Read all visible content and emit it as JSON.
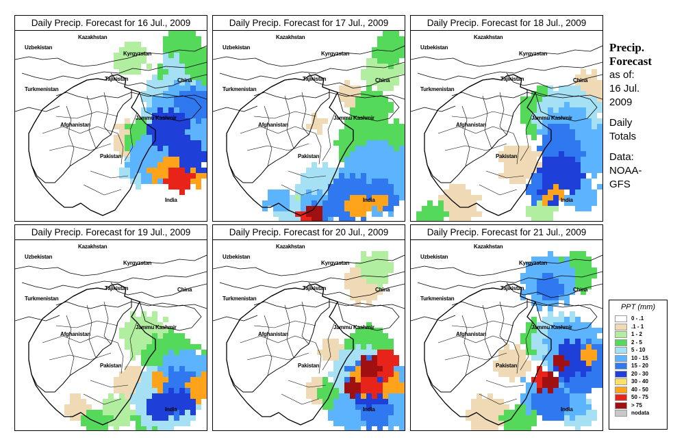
{
  "panels": [
    {
      "title": "Daily Precip. Forecast for  16 Jul., 2009"
    },
    {
      "title": "Daily Precip. Forecast for  17 Jul., 2009"
    },
    {
      "title": "Daily Precip. Forecast for  18 Jul., 2009"
    },
    {
      "title": "Daily Precip. Forecast for  19 Jul., 2009"
    },
    {
      "title": "Daily Precip. Forecast for  20 Jul., 2009"
    },
    {
      "title": "Daily Precip. Forecast for  21 Jul., 2009"
    }
  ],
  "country_labels": [
    "Kazakhstan",
    "Uzbekistan",
    "Kyrgyzstan",
    "Tajikistan",
    "Turkmenistan",
    "China",
    "Afghanistan",
    "Jammu Kashmir",
    "Pakistan",
    "India"
  ],
  "sidebar": {
    "title_line1": "Precip.",
    "title_line2": "Forecast",
    "asof_line1": "as of:",
    "asof_line2": "16 Jul.",
    "asof_line3": "2009",
    "totals_line1": "Daily",
    "totals_line2": "Totals",
    "source_line1": "Data:",
    "source_line2": "NOAA-",
    "source_line3": "GFS"
  },
  "legend": {
    "title": "PPT (mm)",
    "items": [
      {
        "label": "0 - .1",
        "color": "#ffffff"
      },
      {
        "label": ".1 - 1",
        "color": "#f0d9b5"
      },
      {
        "label": "1 - 2",
        "color": "#b2eea0"
      },
      {
        "label": "2 - 5",
        "color": "#55d95a"
      },
      {
        "label": "5 - 10",
        "color": "#a6e0f5"
      },
      {
        "label": "10 - 15",
        "color": "#5cb4ff"
      },
      {
        "label": "15 - 20",
        "color": "#2f78f0"
      },
      {
        "label": "20 - 30",
        "color": "#1e3fd8"
      },
      {
        "label": "30 - 40",
        "color": "#ffe066"
      },
      {
        "label": "40 - 50",
        "color": "#ffa31a"
      },
      {
        "label": "50 - 75",
        "color": "#e8231a"
      },
      {
        "label": "> 75",
        "color": "#a01010"
      },
      {
        "label": "nodata",
        "color": "#c8c8c8"
      }
    ]
  }
}
